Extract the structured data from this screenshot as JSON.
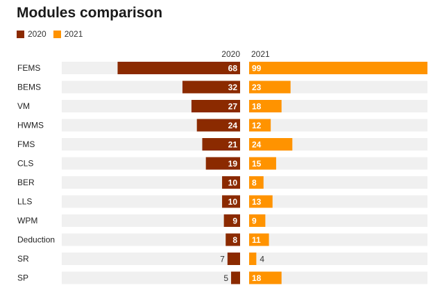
{
  "chart_data": {
    "type": "bar",
    "title": "Modules comparison",
    "categories": [
      "FEMS",
      "BEMS",
      "VM",
      "HWMS",
      "FMS",
      "CLS",
      "BER",
      "LLS",
      "WPM",
      "Deduction",
      "SR",
      "SP"
    ],
    "series": [
      {
        "name": "2020",
        "color": "#8b2a00",
        "values": [
          68,
          32,
          27,
          24,
          21,
          19,
          10,
          10,
          9,
          8,
          7,
          5
        ]
      },
      {
        "name": "2021",
        "color": "#ff9300",
        "values": [
          99,
          23,
          18,
          12,
          24,
          15,
          8,
          13,
          9,
          11,
          4,
          18
        ]
      }
    ],
    "column_headers": [
      "2020",
      "2021"
    ],
    "xlim": [
      0,
      99
    ],
    "legend_position": "top-left",
    "track_color": "#f0f0f0"
  }
}
